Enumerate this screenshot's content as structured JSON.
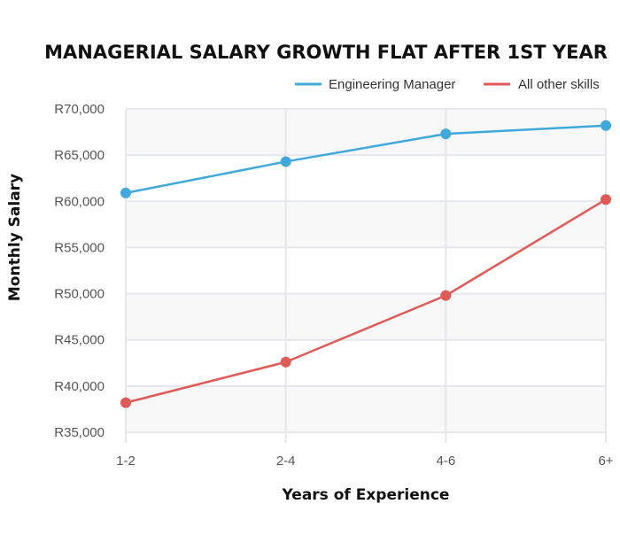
{
  "chart_data": {
    "type": "line",
    "title": "MANAGERIAL SALARY GROWTH FLAT AFTER 1ST YEAR",
    "xlabel": "Years of Experience",
    "ylabel": "Monthly Salary",
    "categories": [
      "1-2",
      "2-4",
      "4-6",
      "6+"
    ],
    "ylim": [
      35000,
      70000
    ],
    "yticks": [
      35000,
      40000,
      45000,
      50000,
      55000,
      60000,
      65000,
      70000
    ],
    "ytick_labels": [
      "R35,000",
      "R40,000",
      "R45,000",
      "R50,000",
      "R55,000",
      "R60,000",
      "R65,000",
      "R70,000"
    ],
    "grid": true,
    "legend_position": "top-right",
    "series": [
      {
        "name": "Engineering Manager",
        "color": "#3fa9dc",
        "values": [
          60900,
          64300,
          67300,
          68200
        ]
      },
      {
        "name": "All other skills",
        "color": "#e05a57",
        "values": [
          38200,
          42600,
          49800,
          60200
        ]
      }
    ]
  }
}
